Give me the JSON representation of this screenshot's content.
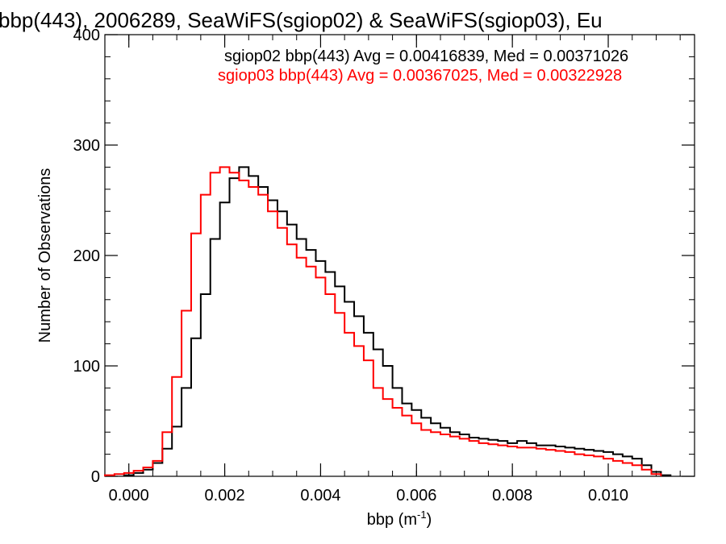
{
  "chart_data": {
    "type": "line",
    "title": "bbp(443), 2006289, SeaWiFS(sgiop02) & SeaWiFS(sgiop03), Eu",
    "xlabel": "bbp (m",
    "xlabel_sup": "-1",
    "xlabel_close": ")",
    "ylabel": "Number of Observations",
    "xlim": [
      -0.0005,
      0.0118
    ],
    "ylim": [
      0,
      400
    ],
    "x_ticks": [
      0.0,
      0.002,
      0.004,
      0.006,
      0.008,
      0.01
    ],
    "x_tick_labels": [
      "0.000",
      "0.002",
      "0.004",
      "0.006",
      "0.008",
      "0.010"
    ],
    "y_ticks": [
      0,
      100,
      200,
      300,
      400
    ],
    "y_tick_labels": [
      "0",
      "100",
      "200",
      "300",
      "400"
    ],
    "x_minor_step": 0.0005,
    "y_minor_step": 20,
    "step": "histogram",
    "series": [
      {
        "name": "sgiop02",
        "color": "#000000",
        "annotation": "sgiop02 bbp(443) Avg = 0.00416839, Med = 0.00371026",
        "x": [
          0.0,
          0.0002,
          0.0004,
          0.0006,
          0.0008,
          0.001,
          0.0012,
          0.0014,
          0.0016,
          0.0018,
          0.002,
          0.0022,
          0.0024,
          0.0026,
          0.0028,
          0.003,
          0.0032,
          0.0034,
          0.0036,
          0.0038,
          0.004,
          0.0042,
          0.0044,
          0.0046,
          0.0048,
          0.005,
          0.0052,
          0.0054,
          0.0056,
          0.0058,
          0.006,
          0.0062,
          0.0064,
          0.0066,
          0.0068,
          0.007,
          0.0072,
          0.0074,
          0.0076,
          0.0078,
          0.008,
          0.0082,
          0.0084,
          0.0086,
          0.0088,
          0.009,
          0.0092,
          0.0094,
          0.0096,
          0.0098,
          0.01,
          0.0102,
          0.0104,
          0.0106,
          0.0108,
          0.011,
          0.0112
        ],
        "y": [
          1,
          3,
          6,
          12,
          25,
          45,
          80,
          125,
          165,
          215,
          248,
          270,
          280,
          272,
          262,
          250,
          240,
          228,
          215,
          205,
          195,
          185,
          172,
          158,
          145,
          130,
          115,
          100,
          80,
          66,
          60,
          53,
          48,
          44,
          40,
          38,
          35,
          34,
          33,
          32,
          30,
          32,
          30,
          28,
          28,
          27,
          26,
          25,
          24,
          23,
          22,
          20,
          18,
          16,
          10,
          4,
          1
        ]
      },
      {
        "name": "sgiop03",
        "color": "#ff0000",
        "annotation": "sgiop03 bbp(443) Avg = 0.00367025, Med = 0.00322928",
        "x": [
          -0.0004,
          -0.0002,
          0.0,
          0.0002,
          0.0004,
          0.0006,
          0.0008,
          0.001,
          0.0012,
          0.0014,
          0.0016,
          0.0018,
          0.002,
          0.0022,
          0.0024,
          0.0026,
          0.0028,
          0.003,
          0.0032,
          0.0034,
          0.0036,
          0.0038,
          0.004,
          0.0042,
          0.0044,
          0.0046,
          0.0048,
          0.005,
          0.0052,
          0.0054,
          0.0056,
          0.0058,
          0.006,
          0.0062,
          0.0064,
          0.0066,
          0.0068,
          0.007,
          0.0072,
          0.0074,
          0.0076,
          0.0078,
          0.008,
          0.0082,
          0.0084,
          0.0086,
          0.0088,
          0.009,
          0.0092,
          0.0094,
          0.0096,
          0.0098,
          0.01,
          0.0102,
          0.0104,
          0.0106,
          0.0108,
          0.011
        ],
        "y": [
          1,
          2,
          3,
          5,
          8,
          14,
          40,
          90,
          150,
          220,
          255,
          275,
          280,
          275,
          268,
          262,
          255,
          240,
          225,
          210,
          198,
          190,
          180,
          165,
          148,
          130,
          118,
          105,
          80,
          70,
          62,
          55,
          48,
          42,
          40,
          38,
          36,
          34,
          32,
          30,
          29,
          28,
          27,
          26,
          26,
          25,
          24,
          23,
          22,
          20,
          19,
          18,
          16,
          14,
          12,
          10,
          6,
          2
        ]
      }
    ]
  }
}
